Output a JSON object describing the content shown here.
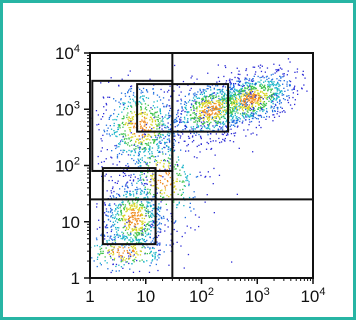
{
  "chart_data": {
    "type": "scatter",
    "title": "",
    "xlabel": "",
    "ylabel": "",
    "x_scale": "log",
    "y_scale": "log",
    "xlim": [
      1,
      10000
    ],
    "ylim": [
      1,
      10000
    ],
    "grid": false,
    "x_ticks": [
      {
        "value": 1,
        "base": "1",
        "exp": ""
      },
      {
        "value": 10,
        "base": "10",
        "exp": ""
      },
      {
        "value": 100,
        "base": "10",
        "exp": "2"
      },
      {
        "value": 1000,
        "base": "10",
        "exp": "3"
      },
      {
        "value": 10000,
        "base": "10",
        "exp": "4"
      }
    ],
    "y_ticks": [
      {
        "value": 1,
        "base": "1",
        "exp": ""
      },
      {
        "value": 10,
        "base": "10",
        "exp": ""
      },
      {
        "value": 100,
        "base": "10",
        "exp": "2"
      },
      {
        "value": 1000,
        "base": "10",
        "exp": "3"
      },
      {
        "value": 10000,
        "base": "10",
        "exp": "4"
      }
    ],
    "quadrant_lines": {
      "x": 30,
      "y": 25
    },
    "gates": [
      {
        "x": [
          1.1,
          30
        ],
        "y": [
          80,
          3200
        ]
      },
      {
        "x": [
          7,
          300
        ],
        "y": [
          400,
          2800
        ]
      },
      {
        "x": [
          1.7,
          15
        ],
        "y": [
          4,
          90
        ]
      }
    ],
    "populations": [
      {
        "cx": 700,
        "cy": 1500,
        "sx": 0.45,
        "sy": 0.22,
        "rot": 0.35,
        "n": 900
      },
      {
        "cx": 150,
        "cy": 1000,
        "sx": 0.4,
        "sy": 0.25,
        "rot": 0.3,
        "n": 650
      },
      {
        "cx": 8,
        "cy": 500,
        "sx": 0.38,
        "sy": 0.4,
        "rot": 0.0,
        "n": 650
      },
      {
        "cx": 6,
        "cy": 12,
        "sx": 0.28,
        "sy": 0.35,
        "rot": 0.0,
        "n": 650
      },
      {
        "cx": 20,
        "cy": 60,
        "sx": 0.35,
        "sy": 0.45,
        "rot": 0.4,
        "n": 350
      },
      {
        "cx": 4,
        "cy": 3,
        "sx": 0.45,
        "sy": 0.2,
        "rot": 0.0,
        "n": 250
      }
    ],
    "density_colors": [
      "#2b2bd6",
      "#1f6fe0",
      "#19b4c8",
      "#3cc24a",
      "#d7d41e",
      "#ef8a1c"
    ]
  }
}
